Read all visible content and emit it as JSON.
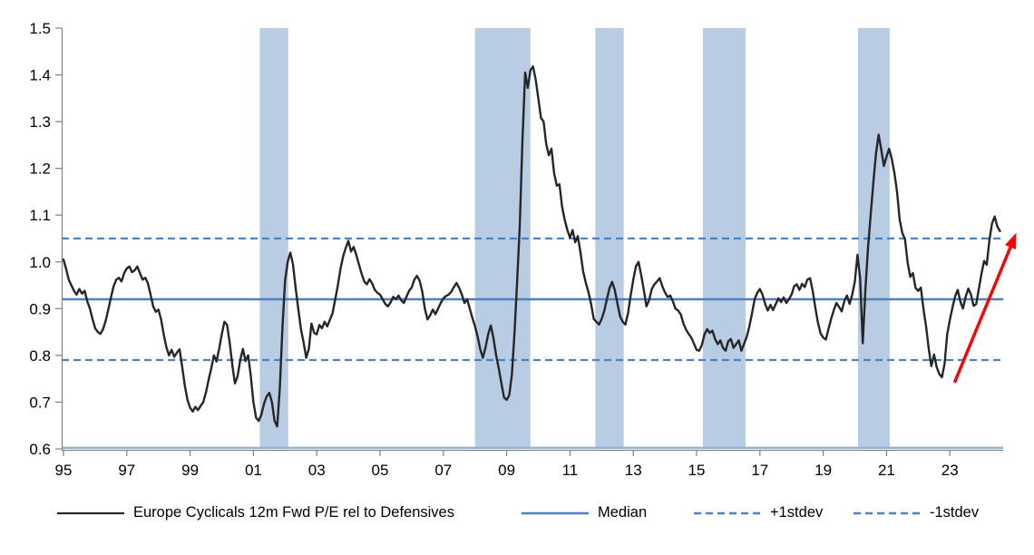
{
  "chart_data": {
    "type": "line",
    "title": "",
    "x_axis": {
      "labels": [
        "95",
        "97",
        "99",
        "01",
        "03",
        "05",
        "07",
        "09",
        "11",
        "13",
        "15",
        "17",
        "19",
        "21",
        "23"
      ],
      "years": [
        1995,
        1997,
        1999,
        2001,
        2003,
        2005,
        2007,
        2009,
        2011,
        2013,
        2015,
        2017,
        2019,
        2021,
        2023
      ]
    },
    "y_axis": {
      "labels": [
        "1.5",
        "1.4",
        "1.3",
        "1.2",
        "1.1",
        "1.0",
        "0.9",
        "0.8",
        "0.7",
        "0.6"
      ],
      "min": 0.6,
      "max": 1.5,
      "tick_step": 0.1
    },
    "series": [
      {
        "name": "Europe Cyclicals 12m Fwd P/E rel to Defensives",
        "color": "#262626",
        "start_year": 1995,
        "points_per_year": 12,
        "values": [
          1.005,
          0.985,
          0.962,
          0.95,
          0.938,
          0.93,
          0.942,
          0.932,
          0.938,
          0.916,
          0.9,
          0.878,
          0.858,
          0.85,
          0.846,
          0.856,
          0.874,
          0.898,
          0.924,
          0.948,
          0.962,
          0.966,
          0.958,
          0.976,
          0.986,
          0.99,
          0.978,
          0.982,
          0.99,
          0.976,
          0.962,
          0.966,
          0.954,
          0.93,
          0.905,
          0.893,
          0.898,
          0.877,
          0.845,
          0.818,
          0.8,
          0.812,
          0.797,
          0.806,
          0.813,
          0.775,
          0.735,
          0.705,
          0.688,
          0.68,
          0.69,
          0.683,
          0.692,
          0.7,
          0.72,
          0.748,
          0.772,
          0.8,
          0.787,
          0.814,
          0.845,
          0.872,
          0.866,
          0.828,
          0.78,
          0.74,
          0.755,
          0.79,
          0.814,
          0.788,
          0.8,
          0.756,
          0.7,
          0.667,
          0.66,
          0.673,
          0.696,
          0.712,
          0.72,
          0.7,
          0.66,
          0.648,
          0.73,
          0.86,
          0.96,
          1.0,
          1.02,
          0.995,
          0.945,
          0.9,
          0.856,
          0.828,
          0.795,
          0.814,
          0.868,
          0.848,
          0.845,
          0.865,
          0.858,
          0.872,
          0.862,
          0.876,
          0.89,
          0.92,
          0.95,
          0.985,
          1.012,
          1.03,
          1.045,
          1.022,
          1.032,
          1.015,
          0.995,
          0.975,
          0.958,
          0.952,
          0.963,
          0.954,
          0.94,
          0.934,
          0.93,
          0.92,
          0.91,
          0.905,
          0.913,
          0.925,
          0.92,
          0.928,
          0.918,
          0.912,
          0.925,
          0.938,
          0.945,
          0.962,
          0.97,
          0.96,
          0.937,
          0.9,
          0.877,
          0.886,
          0.898,
          0.888,
          0.9,
          0.912,
          0.922,
          0.927,
          0.93,
          0.936,
          0.946,
          0.955,
          0.944,
          0.93,
          0.912,
          0.92,
          0.9,
          0.88,
          0.862,
          0.84,
          0.813,
          0.795,
          0.817,
          0.845,
          0.864,
          0.836,
          0.8,
          0.772,
          0.74,
          0.71,
          0.705,
          0.715,
          0.76,
          0.85,
          0.96,
          1.08,
          1.26,
          1.405,
          1.372,
          1.41,
          1.418,
          1.39,
          1.35,
          1.308,
          1.3,
          1.252,
          1.228,
          1.242,
          1.19,
          1.163,
          1.166,
          1.118,
          1.09,
          1.068,
          1.052,
          1.068,
          1.042,
          1.055,
          1.02,
          0.98,
          0.955,
          0.935,
          0.91,
          0.878,
          0.872,
          0.866,
          0.878,
          0.895,
          0.92,
          0.944,
          0.957,
          0.94,
          0.91,
          0.883,
          0.872,
          0.866,
          0.89,
          0.928,
          0.962,
          0.99,
          1.0,
          0.972,
          0.94,
          0.905,
          0.918,
          0.942,
          0.952,
          0.958,
          0.965,
          0.948,
          0.935,
          0.925,
          0.928,
          0.916,
          0.9,
          0.896,
          0.888,
          0.868,
          0.855,
          0.846,
          0.838,
          0.825,
          0.812,
          0.81,
          0.822,
          0.845,
          0.856,
          0.848,
          0.853,
          0.835,
          0.824,
          0.832,
          0.816,
          0.81,
          0.83,
          0.835,
          0.816,
          0.824,
          0.832,
          0.81,
          0.825,
          0.84,
          0.862,
          0.89,
          0.92,
          0.934,
          0.942,
          0.93,
          0.91,
          0.896,
          0.908,
          0.897,
          0.91,
          0.922,
          0.914,
          0.924,
          0.912,
          0.92,
          0.93,
          0.948,
          0.952,
          0.94,
          0.953,
          0.946,
          0.962,
          0.965,
          0.938,
          0.902,
          0.87,
          0.847,
          0.838,
          0.834,
          0.856,
          0.878,
          0.896,
          0.912,
          0.904,
          0.894,
          0.916,
          0.928,
          0.91,
          0.93,
          0.958,
          1.015,
          0.965,
          0.826,
          0.94,
          1.03,
          1.1,
          1.17,
          1.232,
          1.272,
          1.24,
          1.205,
          1.225,
          1.242,
          1.22,
          1.19,
          1.15,
          1.09,
          1.062,
          1.048,
          0.998,
          0.968,
          0.976,
          0.944,
          0.938,
          0.945,
          0.9,
          0.862,
          0.815,
          0.777,
          0.802,
          0.775,
          0.76,
          0.753,
          0.782,
          0.845,
          0.876,
          0.902,
          0.926,
          0.94,
          0.915,
          0.9,
          0.926,
          0.943,
          0.93,
          0.906,
          0.91,
          0.942,
          0.975,
          1.002,
          0.994,
          1.046,
          1.082,
          1.097,
          1.076,
          1.066
        ]
      }
    ],
    "reference_lines": [
      {
        "name": "Median",
        "value": 0.92,
        "style": "solid",
        "color": "#4f81bd"
      },
      {
        "name": "+1stdev",
        "value": 1.05,
        "style": "dashed",
        "color": "#4a82c4"
      },
      {
        "name": "-1stdev",
        "value": 0.79,
        "style": "dashed",
        "color": "#4a82c4"
      }
    ],
    "baseline": {
      "value": 0.6,
      "color": "#95b3d7"
    },
    "shaded_bands": [
      [
        2001.2,
        2002.1
      ],
      [
        2008.0,
        2009.75
      ],
      [
        2011.8,
        2012.7
      ],
      [
        2015.2,
        2016.55
      ],
      [
        2020.1,
        2021.1
      ]
    ],
    "band_color": "#b8cce4",
    "axis_color": "#808080",
    "annotation_arrow": {
      "color": "#fe0000",
      "from": {
        "year": 2023.15,
        "value": 0.742
      },
      "to": {
        "year": 2025.1,
        "value": 1.062
      }
    }
  },
  "legend": {
    "items": [
      {
        "label": "Europe Cyclicals 12m Fwd P/E rel to Defensives",
        "swatch": "solid-dark"
      },
      {
        "label": "Median",
        "swatch": "solid-blue"
      },
      {
        "label": "+1stdev",
        "swatch": "dashed-blue"
      },
      {
        "label": "-1stdev",
        "swatch": "dashed-blue"
      }
    ]
  }
}
